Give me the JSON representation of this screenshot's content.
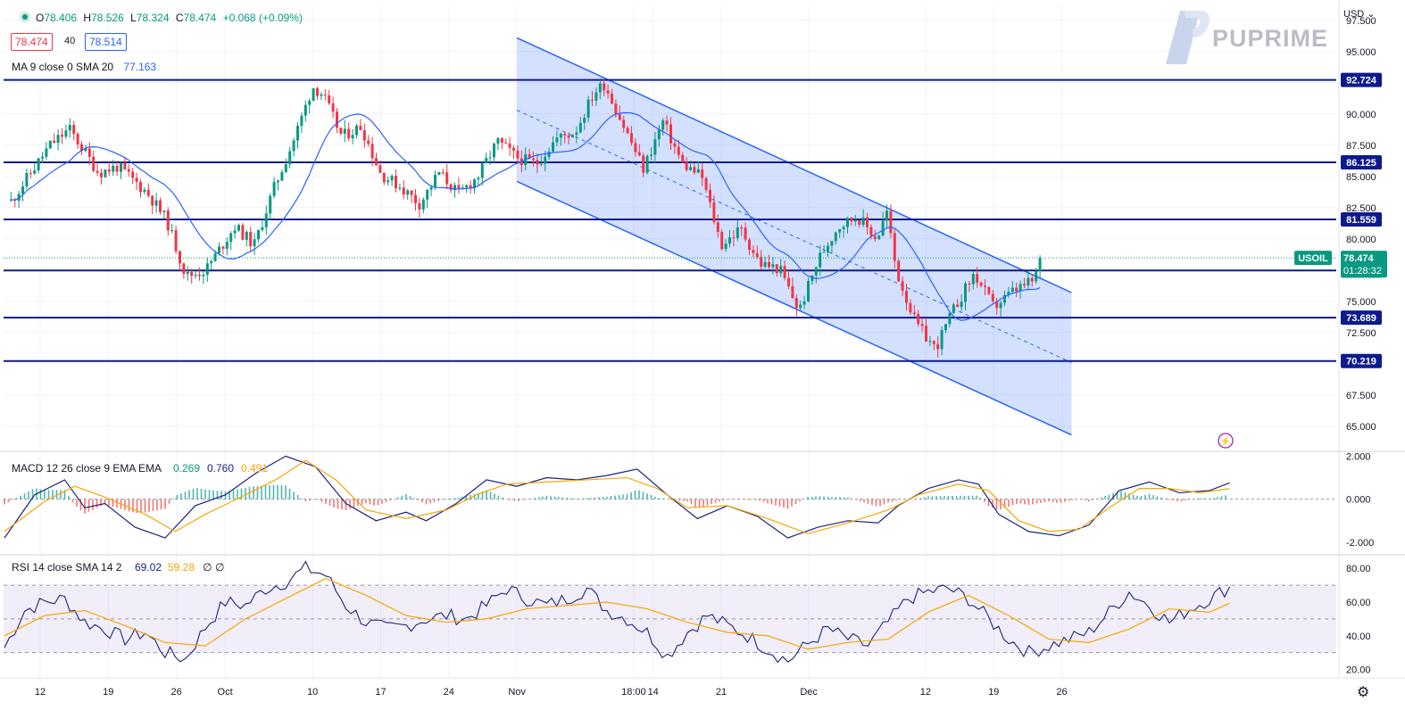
{
  "header": {
    "open_label": "O",
    "open": "78.406",
    "high_label": "H",
    "high": "78.526",
    "low_label": "L",
    "low": "78.324",
    "close_label": "C",
    "close": "78.474",
    "change": "+0.068 (+0.09%)",
    "bid": "78.474",
    "spread": "40",
    "ask": "78.514",
    "ma_label": "MA 9 close 0 SMA 20",
    "ma_value": "77.163"
  },
  "currency_label": "USD",
  "brand": "PUPRIME",
  "symbol_label": "USOIL",
  "countdown": "01:28:32",
  "colors": {
    "up": "#089981",
    "down": "#f23645",
    "level": "#0d1a8c",
    "channel": "#2962ff",
    "ma": "#2962ff",
    "signal": "#f7a600",
    "rsi": "#1a237e"
  },
  "chart_data": [
    {
      "type": "candlestick",
      "symbol": "USOIL",
      "currency": "USD",
      "x_ticks": [
        "12",
        "19",
        "26",
        "Oct",
        "10",
        "17",
        "24",
        "Nov",
        "18:00",
        "14",
        "21",
        "Dec",
        "12",
        "19",
        "26"
      ],
      "y_ticks": [
        "97.500",
        "95.000",
        "92.500",
        "90.000",
        "87.500",
        "85.000",
        "82.500",
        "80.000",
        "77.500",
        "75.000",
        "72.500",
        "70.000",
        "67.500",
        "65.000"
      ],
      "ylim": [
        63.2,
        98.7
      ],
      "horizontal_levels": [
        "92.724",
        "86.125",
        "81.559",
        "77.469",
        "73.689",
        "70.219"
      ],
      "current_price": "78.474",
      "close_path": [
        {
          "x": "Sep 9",
          "y": 83.0
        },
        {
          "x": "Sep 13",
          "y": 87.5
        },
        {
          "x": "Sep 15",
          "y": 88.8
        },
        {
          "x": "Sep 18",
          "y": 85.3
        },
        {
          "x": "Sep 20",
          "y": 85.8
        },
        {
          "x": "Sep 23",
          "y": 83.7
        },
        {
          "x": "Sep 25",
          "y": 81.5
        },
        {
          "x": "Sep 27",
          "y": 77.0
        },
        {
          "x": "Sep 29",
          "y": 77.5
        },
        {
          "x": "Oct 2",
          "y": 81.0
        },
        {
          "x": "Oct 4",
          "y": 79.5
        },
        {
          "x": "Oct 6",
          "y": 84.0
        },
        {
          "x": "Oct 8",
          "y": 87.8
        },
        {
          "x": "Oct 10",
          "y": 92.2
        },
        {
          "x": "Oct 11",
          "y": 91.6
        },
        {
          "x": "Oct 13",
          "y": 88.2
        },
        {
          "x": "Oct 15",
          "y": 89.0
        },
        {
          "x": "Oct 17",
          "y": 85.2
        },
        {
          "x": "Oct 19",
          "y": 84.2
        },
        {
          "x": "Oct 21",
          "y": 82.8
        },
        {
          "x": "Oct 23",
          "y": 85.3
        },
        {
          "x": "Oct 25",
          "y": 83.6
        },
        {
          "x": "Oct 27",
          "y": 85.0
        },
        {
          "x": "Oct 29",
          "y": 87.8
        },
        {
          "x": "Oct 31",
          "y": 86.5
        },
        {
          "x": "Nov 2",
          "y": 86.0
        },
        {
          "x": "Nov 4",
          "y": 88.0
        },
        {
          "x": "Nov 6",
          "y": 88.6
        },
        {
          "x": "Nov 8",
          "y": 91.8
        },
        {
          "x": "Nov 9",
          "y": 92.4
        },
        {
          "x": "Nov 11",
          "y": 89.0
        },
        {
          "x": "Nov 13",
          "y": 85.6
        },
        {
          "x": "Nov 15",
          "y": 89.4
        },
        {
          "x": "Nov 17",
          "y": 86.0
        },
        {
          "x": "Nov 19",
          "y": 85.0
        },
        {
          "x": "Nov 21",
          "y": 79.5
        },
        {
          "x": "Nov 23",
          "y": 80.8
        },
        {
          "x": "Nov 25",
          "y": 78.0
        },
        {
          "x": "Nov 27",
          "y": 77.6
        },
        {
          "x": "Nov 29",
          "y": 74.2
        },
        {
          "x": "Dec 1",
          "y": 78.4
        },
        {
          "x": "Dec 3",
          "y": 81.0
        },
        {
          "x": "Dec 5",
          "y": 81.8
        },
        {
          "x": "Dec 7",
          "y": 80.0
        },
        {
          "x": "Dec 8",
          "y": 82.2
        },
        {
          "x": "Dec 9",
          "y": 77.4
        },
        {
          "x": "Dec 11",
          "y": 73.2
        },
        {
          "x": "Dec 13",
          "y": 71.2
        },
        {
          "x": "Dec 15",
          "y": 74.5
        },
        {
          "x": "Dec 17",
          "y": 77.2
        },
        {
          "x": "Dec 19",
          "y": 74.5
        },
        {
          "x": "Dec 21",
          "y": 75.8
        },
        {
          "x": "Dec 23",
          "y": 76.6
        },
        {
          "x": "Dec 24",
          "y": 78.474
        }
      ],
      "channel": {
        "upper": [
          {
            "x": "Oct 31",
            "y": 96.1
          },
          {
            "x": "Dec 27",
            "y": 75.7
          }
        ],
        "middle": [
          {
            "x": "Oct 31",
            "y": 90.3
          },
          {
            "x": "Dec 27",
            "y": 70.1
          }
        ],
        "lower": [
          {
            "x": "Oct 31",
            "y": 84.6
          },
          {
            "x": "Dec 27",
            "y": 64.3
          }
        ]
      }
    },
    {
      "type": "line",
      "title": "MACD 12 26 close 9 EMA EMA",
      "legend_values": [
        "0.269",
        "0.760",
        "0.491"
      ],
      "y_ticks": [
        "2.000",
        "0.000",
        "-2.000"
      ],
      "ylim": [
        -2.5,
        2.1
      ],
      "series": [
        {
          "name": "MACD",
          "points": [
            [
              0,
              -1.8
            ],
            [
              3,
              0.2
            ],
            [
              6,
              0.9
            ],
            [
              8,
              -0.4
            ],
            [
              10,
              -0.2
            ],
            [
              13,
              -1.3
            ],
            [
              16,
              -1.8
            ],
            [
              19,
              -0.3
            ],
            [
              22,
              0.2
            ],
            [
              25,
              1.2
            ],
            [
              28,
              2.0
            ],
            [
              31,
              1.5
            ],
            [
              34,
              -0.2
            ],
            [
              37,
              -1.0
            ],
            [
              40,
              -0.6
            ],
            [
              42,
              -1.0
            ],
            [
              45,
              -0.2
            ],
            [
              48,
              0.9
            ],
            [
              51,
              0.6
            ],
            [
              54,
              1.0
            ],
            [
              57,
              0.9
            ],
            [
              60,
              1.1
            ],
            [
              63,
              1.4
            ],
            [
              66,
              0.2
            ],
            [
              69,
              -0.9
            ],
            [
              72,
              -0.3
            ],
            [
              75,
              -0.8
            ],
            [
              78,
              -1.8
            ],
            [
              81,
              -1.3
            ],
            [
              84,
              -1.0
            ],
            [
              87,
              -1.1
            ],
            [
              89,
              -0.3
            ],
            [
              92,
              0.5
            ],
            [
              95,
              0.9
            ],
            [
              97,
              0.7
            ],
            [
              99,
              -0.7
            ],
            [
              102,
              -1.5
            ],
            [
              105,
              -1.7
            ],
            [
              108,
              -1.2
            ],
            [
              111,
              0.4
            ],
            [
              114,
              0.8
            ],
            [
              117,
              0.3
            ],
            [
              120,
              0.4
            ],
            [
              122,
              0.76
            ]
          ]
        },
        {
          "name": "Signal",
          "points": [
            [
              0,
              -1.5
            ],
            [
              4,
              -0.1
            ],
            [
              7,
              0.6
            ],
            [
              10,
              0.1
            ],
            [
              14,
              -0.7
            ],
            [
              17,
              -1.5
            ],
            [
              20,
              -0.7
            ],
            [
              24,
              0.2
            ],
            [
              27,
              0.9
            ],
            [
              30,
              1.8
            ],
            [
              33,
              0.9
            ],
            [
              36,
              -0.5
            ],
            [
              40,
              -0.9
            ],
            [
              44,
              -0.5
            ],
            [
              47,
              0.2
            ],
            [
              50,
              0.7
            ],
            [
              54,
              0.8
            ],
            [
              58,
              0.9
            ],
            [
              62,
              1.0
            ],
            [
              65,
              0.5
            ],
            [
              68,
              -0.4
            ],
            [
              72,
              -0.3
            ],
            [
              76,
              -0.9
            ],
            [
              80,
              -1.6
            ],
            [
              84,
              -1.1
            ],
            [
              88,
              -0.5
            ],
            [
              91,
              0.2
            ],
            [
              95,
              0.7
            ],
            [
              98,
              0.4
            ],
            [
              101,
              -1.0
            ],
            [
              104,
              -1.5
            ],
            [
              107,
              -1.4
            ],
            [
              110,
              -0.4
            ],
            [
              113,
              0.5
            ],
            [
              116,
              0.5
            ],
            [
              119,
              0.3
            ],
            [
              122,
              0.49
            ]
          ]
        }
      ]
    },
    {
      "type": "line",
      "title": "RSI 14 close SMA 14 2",
      "legend_values": [
        "69.02",
        "59.28",
        "∅",
        "∅"
      ],
      "y_ticks": [
        "80.00",
        "60.00",
        "40.00",
        "20.00"
      ],
      "ylim": [
        15,
        87
      ],
      "band": [
        30,
        70
      ],
      "series": [
        {
          "name": "RSI",
          "points": [
            [
              0,
              33
            ],
            [
              2,
              55
            ],
            [
              4,
              60
            ],
            [
              6,
              62
            ],
            [
              8,
              48
            ],
            [
              10,
              44
            ],
            [
              12,
              38
            ],
            [
              14,
              42
            ],
            [
              16,
              30
            ],
            [
              18,
              26
            ],
            [
              20,
              45
            ],
            [
              22,
              60
            ],
            [
              24,
              58
            ],
            [
              26,
              68
            ],
            [
              28,
              72
            ],
            [
              30,
              80
            ],
            [
              32,
              76
            ],
            [
              34,
              58
            ],
            [
              36,
              48
            ],
            [
              38,
              44
            ],
            [
              40,
              46
            ],
            [
              42,
              50
            ],
            [
              44,
              52
            ],
            [
              46,
              50
            ],
            [
              48,
              58
            ],
            [
              50,
              68
            ],
            [
              52,
              62
            ],
            [
              54,
              58
            ],
            [
              56,
              62
            ],
            [
              58,
              68
            ],
            [
              60,
              55
            ],
            [
              62,
              50
            ],
            [
              64,
              42
            ],
            [
              66,
              28
            ],
            [
              68,
              42
            ],
            [
              70,
              52
            ],
            [
              72,
              46
            ],
            [
              74,
              40
            ],
            [
              76,
              32
            ],
            [
              78,
              25
            ],
            [
              80,
              35
            ],
            [
              82,
              44
            ],
            [
              84,
              38
            ],
            [
              86,
              34
            ],
            [
              88,
              48
            ],
            [
              90,
              62
            ],
            [
              92,
              66
            ],
            [
              94,
              68
            ],
            [
              96,
              62
            ],
            [
              98,
              50
            ],
            [
              100,
              38
            ],
            [
              102,
              30
            ],
            [
              104,
              34
            ],
            [
              106,
              38
            ],
            [
              108,
              42
            ],
            [
              110,
              54
            ],
            [
              112,
              66
            ],
            [
              114,
              58
            ],
            [
              116,
              48
            ],
            [
              118,
              56
            ],
            [
              120,
              62
            ],
            [
              122,
              69.02
            ]
          ]
        },
        {
          "name": "SMA",
          "points": [
            [
              0,
              40
            ],
            [
              4,
              52
            ],
            [
              8,
              55
            ],
            [
              12,
              46
            ],
            [
              16,
              36
            ],
            [
              20,
              34
            ],
            [
              24,
              50
            ],
            [
              28,
              62
            ],
            [
              32,
              74
            ],
            [
              36,
              64
            ],
            [
              40,
              52
            ],
            [
              44,
              48
            ],
            [
              48,
              50
            ],
            [
              52,
              56
            ],
            [
              56,
              58
            ],
            [
              60,
              60
            ],
            [
              64,
              56
            ],
            [
              68,
              48
            ],
            [
              72,
              42
            ],
            [
              76,
              40
            ],
            [
              80,
              32
            ],
            [
              84,
              36
            ],
            [
              88,
              38
            ],
            [
              92,
              54
            ],
            [
              96,
              64
            ],
            [
              100,
              52
            ],
            [
              104,
              38
            ],
            [
              108,
              36
            ],
            [
              112,
              44
            ],
            [
              116,
              56
            ],
            [
              120,
              54
            ],
            [
              122,
              59.28
            ]
          ]
        }
      ]
    }
  ]
}
